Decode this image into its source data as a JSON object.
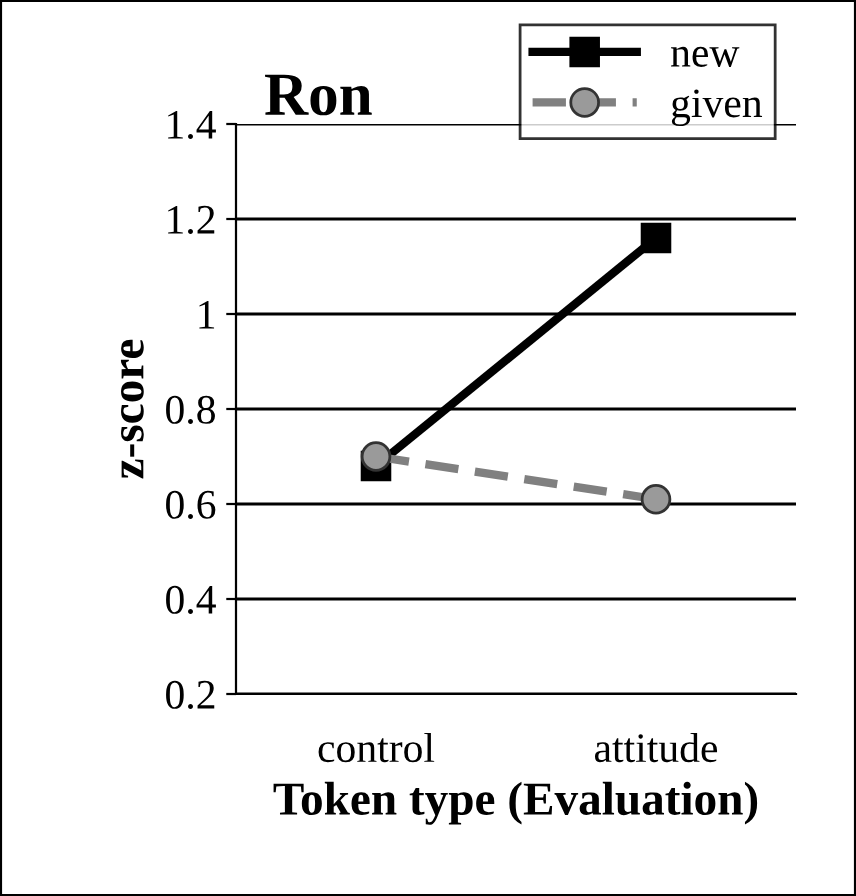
{
  "chart_data": {
    "type": "line",
    "title": "Ron",
    "xlabel": "Token type (Evaluation)",
    "ylabel": "z-score",
    "categories": [
      "control",
      "attitude"
    ],
    "series": [
      {
        "name": "new",
        "color": "#000000",
        "values": [
          0.68,
          1.16
        ],
        "marker": "square",
        "line_style": "solid"
      },
      {
        "name": "given",
        "color": "#808080",
        "values": [
          0.7,
          0.61
        ],
        "marker": "circle",
        "line_style": "dashed"
      }
    ],
    "ylim": [
      0.2,
      1.4
    ],
    "yticks": [
      1.4,
      1.2,
      1,
      0.8,
      0.6,
      0.4,
      0.2
    ],
    "grid": "y",
    "legend": "top right"
  }
}
